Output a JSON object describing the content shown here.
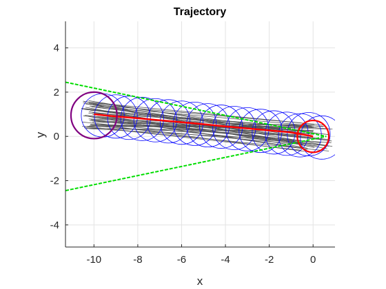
{
  "chart_data": {
    "type": "scatter",
    "title": "Trajectory",
    "xlabel": "x",
    "ylabel": "y",
    "xlim": [
      -11.3,
      1.0
    ],
    "ylim": [
      -5.0,
      5.2
    ],
    "xticks": [
      -10,
      -8,
      -6,
      -4,
      -2,
      0
    ],
    "xtick_labels": [
      "-10",
      "-8",
      "-6",
      "-4",
      "-2",
      "0"
    ],
    "yticks": [
      -4,
      -2,
      0,
      2,
      4
    ],
    "ytick_labels": [
      "-4",
      "-2",
      "0",
      "2",
      "4"
    ],
    "grid": true,
    "colors": {
      "trajectory": "#ff0000",
      "sample_circles": "#0000ff",
      "start_circle": "#800080",
      "goal_circle": "#ff0000",
      "cone_lines": "#00dd00",
      "rollouts": "#555555",
      "axis": "#262626",
      "grid": "#e3e3e3"
    },
    "series": [
      {
        "role": "trajectory",
        "x": [
          -10.0,
          -9.0,
          -8.0,
          -7.0,
          -6.0,
          -5.0,
          -4.0,
          -3.0,
          -2.0,
          -1.0,
          0.0
        ],
        "y": [
          1.0,
          0.9,
          0.82,
          0.73,
          0.64,
          0.55,
          0.45,
          0.36,
          0.27,
          0.18,
          0.0
        ]
      },
      {
        "role": "cone_upper",
        "x": [
          -11.3,
          0.6
        ],
        "y": [
          2.45,
          0.0
        ]
      },
      {
        "role": "cone_lower",
        "x": [
          -11.3,
          0.6
        ],
        "y": [
          -2.45,
          0.0
        ]
      }
    ],
    "sample_circles": {
      "centers_x": [
        -9.6,
        -9.0,
        -8.4,
        -7.8,
        -7.2,
        -6.6,
        -6.0,
        -5.4,
        -4.8,
        -4.2,
        -3.6,
        -3.0,
        -2.4,
        -1.8,
        -1.2,
        -0.6,
        -0.2,
        0.4
      ],
      "centers_y": [
        0.95,
        0.9,
        0.84,
        0.79,
        0.73,
        0.68,
        0.62,
        0.57,
        0.5,
        0.44,
        0.38,
        0.32,
        0.25,
        0.18,
        0.12,
        0.05,
        0.1,
        -0.05
      ],
      "radius": 0.98
    },
    "start_circle": {
      "x": -10.0,
      "y": 0.95,
      "radius": 1.05
    },
    "goal_circle": {
      "x": 0.0,
      "y": 0.0,
      "radius": 0.72
    }
  }
}
